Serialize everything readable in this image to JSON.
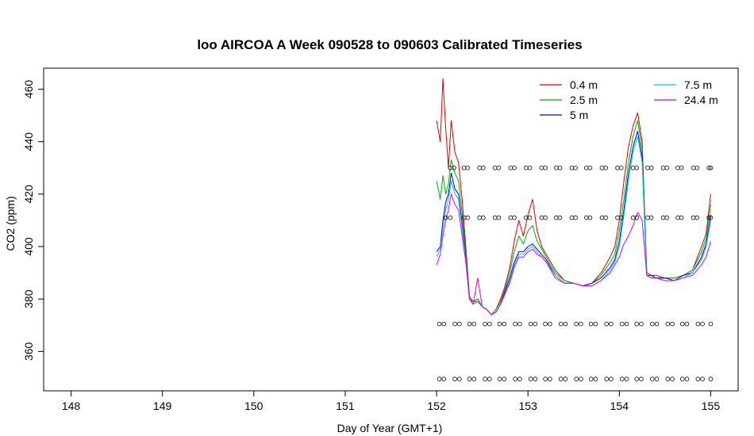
{
  "chart_data": {
    "type": "line",
    "title": "loo AIRCOA A  Week 090528 to 090603  Calibrated Timeseries",
    "xlabel": "Day of Year (GMT+1)",
    "ylabel": "CO2 (ppm)",
    "xlim": [
      147.7,
      155.3
    ],
    "ylim": [
      345,
      468
    ],
    "x_ticks": [
      148,
      149,
      150,
      151,
      152,
      153,
      154,
      155
    ],
    "y_ticks": [
      360,
      380,
      400,
      420,
      440,
      460
    ],
    "legend_position": "top-right",
    "series": [
      {
        "name": "0.4 m",
        "color": "#dd0000",
        "x": [
          152.0,
          152.04,
          152.07,
          152.1,
          152.13,
          152.16,
          152.2,
          152.24,
          152.28,
          152.32,
          152.36,
          152.4,
          152.45,
          152.5,
          152.55,
          152.6,
          152.65,
          152.7,
          152.75,
          152.8,
          152.85,
          152.9,
          152.95,
          153.0,
          153.05,
          153.1,
          153.15,
          153.2,
          153.3,
          153.4,
          153.5,
          153.6,
          153.7,
          153.8,
          153.9,
          153.95,
          154.0,
          154.05,
          154.1,
          154.15,
          154.2,
          154.25,
          154.3,
          154.35,
          154.4,
          154.5,
          154.6,
          154.7,
          154.8,
          154.9,
          154.95,
          155.0
        ],
        "y": [
          448,
          440,
          464,
          445,
          430,
          448,
          436,
          432,
          418,
          400,
          381,
          379,
          380,
          377,
          376,
          374,
          376,
          380,
          385,
          392,
          402,
          410,
          404,
          412,
          418,
          406,
          400,
          397,
          391,
          387,
          386,
          385,
          386,
          390,
          396,
          400,
          410,
          425,
          438,
          446,
          451,
          440,
          390,
          389,
          389,
          388,
          388,
          389,
          391,
          400,
          405,
          420
        ]
      },
      {
        "name": "2.5 m",
        "color": "#00aa00",
        "x": [
          152.0,
          152.04,
          152.07,
          152.1,
          152.13,
          152.16,
          152.2,
          152.24,
          152.28,
          152.32,
          152.36,
          152.4,
          152.45,
          152.5,
          152.55,
          152.6,
          152.65,
          152.7,
          152.75,
          152.8,
          152.85,
          152.9,
          152.95,
          153.0,
          153.05,
          153.1,
          153.15,
          153.2,
          153.3,
          153.4,
          153.5,
          153.6,
          153.7,
          153.8,
          153.9,
          153.95,
          154.0,
          154.05,
          154.1,
          154.15,
          154.2,
          154.25,
          154.3,
          154.35,
          154.4,
          154.5,
          154.6,
          154.7,
          154.8,
          154.9,
          154.95,
          155.0
        ],
        "y": [
          425,
          418,
          427,
          420,
          424,
          433,
          428,
          425,
          413,
          398,
          380,
          379,
          379,
          377,
          376,
          374,
          376,
          379,
          384,
          390,
          398,
          404,
          401,
          406,
          408,
          402,
          399,
          396,
          390,
          387,
          386,
          385,
          386,
          389,
          394,
          397,
          406,
          418,
          432,
          442,
          448,
          437,
          390,
          389,
          388,
          388,
          388,
          389,
          391,
          398,
          403,
          416
        ]
      },
      {
        "name": "5 m",
        "color": "#0000dd",
        "x": [
          152.0,
          152.04,
          152.07,
          152.1,
          152.13,
          152.16,
          152.2,
          152.24,
          152.28,
          152.32,
          152.36,
          152.4,
          152.45,
          152.5,
          152.55,
          152.6,
          152.65,
          152.7,
          152.75,
          152.8,
          152.85,
          152.9,
          152.95,
          153.0,
          153.05,
          153.1,
          153.15,
          153.2,
          153.3,
          153.4,
          153.5,
          153.6,
          153.7,
          153.8,
          153.9,
          153.95,
          154.0,
          154.05,
          154.1,
          154.15,
          154.2,
          154.25,
          154.3,
          154.35,
          154.4,
          154.5,
          154.6,
          154.7,
          154.8,
          154.9,
          154.95,
          155.0
        ],
        "y": [
          398,
          400,
          410,
          417,
          420,
          428,
          422,
          420,
          409,
          396,
          380,
          378,
          379,
          377,
          376,
          374,
          375,
          378,
          383,
          388,
          394,
          398,
          398,
          400,
          401,
          399,
          397,
          395,
          389,
          386,
          386,
          385,
          386,
          388,
          392,
          395,
          402,
          414,
          428,
          438,
          444,
          434,
          389,
          389,
          388,
          388,
          387,
          389,
          390,
          396,
          401,
          412
        ]
      },
      {
        "name": "7.5 m",
        "color": "#00cccc",
        "x": [
          152.0,
          152.04,
          152.07,
          152.1,
          152.13,
          152.16,
          152.2,
          152.24,
          152.28,
          152.32,
          152.36,
          152.4,
          152.45,
          152.5,
          152.55,
          152.6,
          152.65,
          152.7,
          152.75,
          152.8,
          152.85,
          152.9,
          152.95,
          153.0,
          153.05,
          153.1,
          153.15,
          153.2,
          153.3,
          153.4,
          153.5,
          153.6,
          153.7,
          153.8,
          153.9,
          153.95,
          154.0,
          154.05,
          154.1,
          154.15,
          154.2,
          154.25,
          154.3,
          154.35,
          154.4,
          154.5,
          154.6,
          154.7,
          154.8,
          154.9,
          154.95,
          155.0
        ],
        "y": [
          396,
          399,
          407,
          414,
          418,
          425,
          420,
          418,
          407,
          395,
          380,
          378,
          379,
          377,
          376,
          374,
          375,
          378,
          382,
          387,
          393,
          397,
          397,
          399,
          400,
          398,
          396,
          394,
          389,
          386,
          386,
          385,
          385,
          387,
          391,
          394,
          400,
          412,
          425,
          436,
          442,
          432,
          389,
          388,
          388,
          387,
          387,
          388,
          390,
          395,
          400,
          410
        ]
      },
      {
        "name": "24.4 m",
        "color": "#dd00dd",
        "x": [
          152.0,
          152.04,
          152.07,
          152.1,
          152.13,
          152.16,
          152.2,
          152.24,
          152.28,
          152.32,
          152.36,
          152.4,
          152.45,
          152.5,
          152.55,
          152.6,
          152.65,
          152.7,
          152.75,
          152.8,
          152.85,
          152.9,
          152.95,
          153.0,
          153.05,
          153.1,
          153.15,
          153.2,
          153.3,
          153.4,
          153.5,
          153.6,
          153.7,
          153.8,
          153.9,
          153.95,
          154.0,
          154.05,
          154.1,
          154.15,
          154.2,
          154.25,
          154.3,
          154.35,
          154.4,
          154.5,
          154.6,
          154.7,
          154.8,
          154.9,
          154.95,
          155.0
        ],
        "y": [
          393,
          397,
          404,
          410,
          414,
          420,
          416,
          414,
          404,
          394,
          380,
          378,
          388,
          377,
          376,
          374,
          375,
          378,
          382,
          386,
          392,
          396,
          396,
          398,
          399,
          397,
          396,
          394,
          388,
          386,
          386,
          385,
          385,
          387,
          390,
          393,
          396,
          401,
          404,
          408,
          413,
          410,
          389,
          388,
          388,
          387,
          387,
          388,
          389,
          393,
          396,
          402
        ]
      }
    ],
    "marker_series": [
      {
        "y": 430,
        "x": [
          152.15,
          152.19,
          152.3,
          152.34,
          152.47,
          152.51,
          152.64,
          152.68,
          152.81,
          152.85,
          152.98,
          153.02,
          153.15,
          153.19,
          153.31,
          153.35,
          153.48,
          153.52,
          153.64,
          153.68,
          153.81,
          153.85,
          153.98,
          154.02,
          154.15,
          154.19,
          154.31,
          154.35,
          154.48,
          154.52,
          154.64,
          154.68,
          154.81,
          154.85,
          154.98,
          155.0
        ]
      },
      {
        "y": 411,
        "x": [
          152.1,
          152.15,
          152.3,
          152.34,
          152.47,
          152.51,
          152.64,
          152.68,
          152.81,
          152.85,
          152.98,
          153.02,
          153.15,
          153.19,
          153.31,
          153.35,
          153.48,
          153.52,
          153.64,
          153.68,
          153.81,
          153.85,
          153.98,
          154.02,
          154.15,
          154.19,
          154.31,
          154.35,
          154.48,
          154.52,
          154.64,
          154.68,
          154.81,
          154.85,
          154.98,
          155.0
        ]
      },
      {
        "y": 370.5,
        "x": [
          152.03,
          152.08,
          152.2,
          152.25,
          152.36,
          152.41,
          152.53,
          152.58,
          152.69,
          152.74,
          152.86,
          152.91,
          153.03,
          153.08,
          153.19,
          153.24,
          153.36,
          153.41,
          153.53,
          153.58,
          153.69,
          153.74,
          153.86,
          153.91,
          154.03,
          154.08,
          154.19,
          154.24,
          154.36,
          154.41,
          154.53,
          154.58,
          154.69,
          154.74,
          154.86,
          154.91,
          155.0
        ]
      },
      {
        "y": 349.5,
        "x": [
          152.03,
          152.08,
          152.2,
          152.25,
          152.36,
          152.41,
          152.53,
          152.58,
          152.69,
          152.74,
          152.86,
          152.91,
          153.03,
          153.08,
          153.19,
          153.24,
          153.36,
          153.41,
          153.53,
          153.58,
          153.69,
          153.74,
          153.86,
          153.91,
          154.03,
          154.08,
          154.19,
          154.24,
          154.36,
          154.41,
          154.53,
          154.58,
          154.69,
          154.74,
          154.86,
          154.91,
          155.0
        ]
      }
    ]
  }
}
